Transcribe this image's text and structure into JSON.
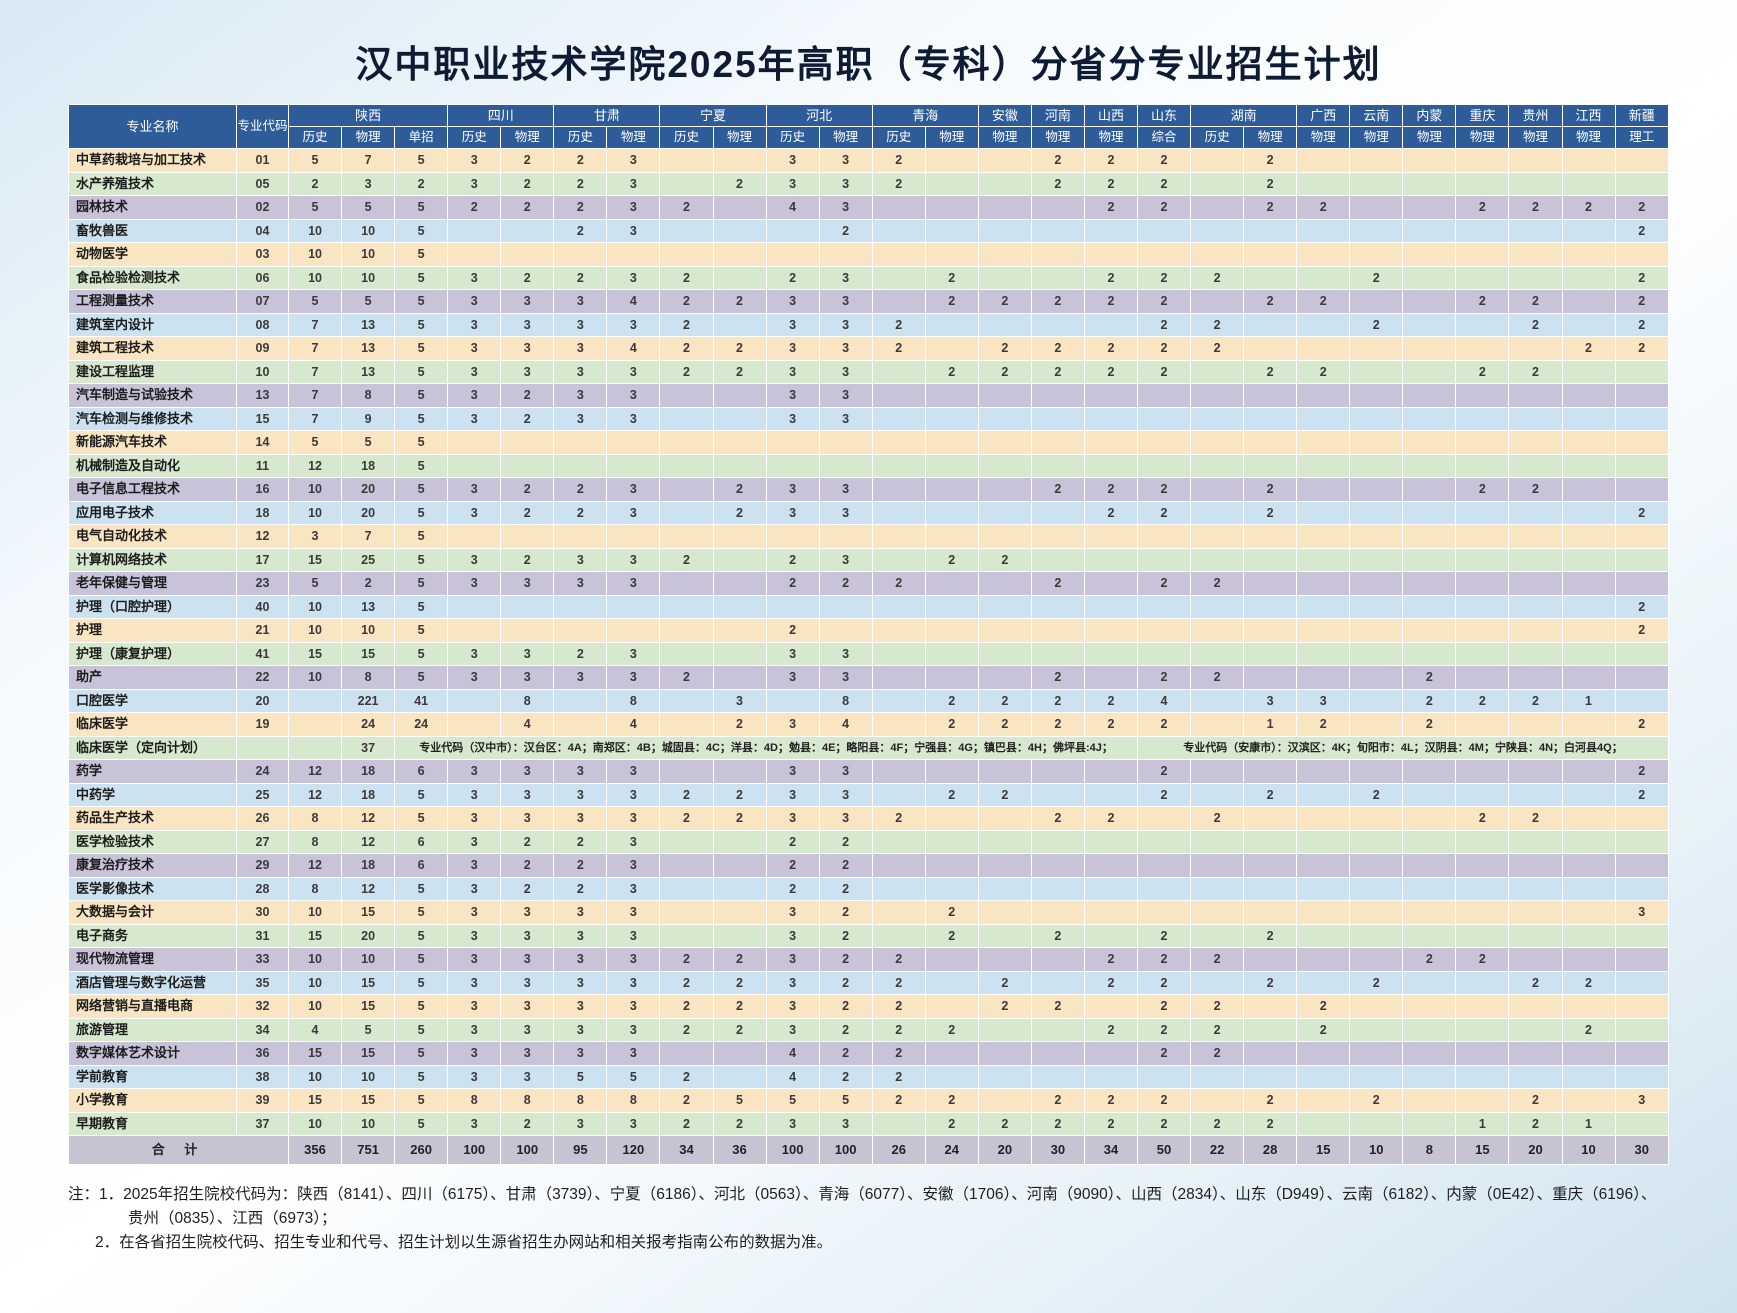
{
  "title": "汉中职业技术学院2025年高职（专科）分省分专业招生计划",
  "colors": {
    "header_bg": "#2e5c99",
    "row_cycle": [
      "#fae5c3",
      "#d6e8cd",
      "#c9c3d9",
      "#cde2f0"
    ],
    "total_bg": "#c6c3d3",
    "grid": "#ffffff",
    "title": "#0d1b33"
  },
  "table": {
    "header": {
      "name_label": "专业名称",
      "code_label": "专业代码",
      "groups": [
        {
          "name": "陕西",
          "subjects": [
            "历史",
            "物理",
            "单招"
          ]
        },
        {
          "name": "四川",
          "subjects": [
            "历史",
            "物理"
          ]
        },
        {
          "name": "甘肃",
          "subjects": [
            "历史",
            "物理"
          ]
        },
        {
          "name": "宁夏",
          "subjects": [
            "历史",
            "物理"
          ]
        },
        {
          "name": "河北",
          "subjects": [
            "历史",
            "物理"
          ]
        },
        {
          "name": "青海",
          "subjects": [
            "历史",
            "物理"
          ]
        },
        {
          "name": "安徽",
          "subjects": [
            "物理"
          ]
        },
        {
          "name": "河南",
          "subjects": [
            "物理"
          ]
        },
        {
          "name": "山西",
          "subjects": [
            "物理"
          ]
        },
        {
          "name": "山东",
          "subjects": [
            "综合"
          ]
        },
        {
          "name": "湖南",
          "subjects": [
            "历史",
            "物理"
          ]
        },
        {
          "name": "广西",
          "subjects": [
            "物理"
          ]
        },
        {
          "name": "云南",
          "subjects": [
            "物理"
          ]
        },
        {
          "name": "内蒙",
          "subjects": [
            "物理"
          ]
        },
        {
          "name": "重庆",
          "subjects": [
            "物理"
          ]
        },
        {
          "name": "贵州",
          "subjects": [
            "物理"
          ]
        },
        {
          "name": "江西",
          "subjects": [
            "物理"
          ]
        },
        {
          "name": "新疆",
          "subjects": [
            "理工"
          ]
        }
      ]
    },
    "rows": [
      {
        "name": "中草药栽培与加工技术",
        "code": "01",
        "values": [
          5,
          7,
          5,
          3,
          2,
          2,
          3,
          "",
          "",
          3,
          3,
          2,
          "",
          "",
          2,
          2,
          2,
          "",
          2
        ]
      },
      {
        "name": "水产养殖技术",
        "code": "05",
        "values": [
          2,
          3,
          2,
          3,
          2,
          2,
          3,
          "",
          2,
          3,
          3,
          2,
          "",
          "",
          2,
          2,
          2,
          "",
          2
        ]
      },
      {
        "name": "园林技术",
        "code": "02",
        "values": [
          5,
          5,
          5,
          2,
          2,
          2,
          3,
          2,
          "",
          4,
          3,
          "",
          "",
          "",
          "",
          2,
          2,
          "",
          2,
          2,
          "",
          "",
          2,
          2,
          2,
          2
        ]
      },
      {
        "name": "畜牧兽医",
        "code": "04",
        "values": [
          10,
          10,
          5,
          "",
          "",
          2,
          3,
          "",
          "",
          "",
          2,
          "",
          "",
          "",
          "",
          "",
          "",
          "",
          "",
          "",
          "",
          "",
          "",
          "",
          "",
          2
        ]
      },
      {
        "name": "动物医学",
        "code": "03",
        "values": [
          10,
          10,
          5
        ]
      },
      {
        "name": "食品检验检测技术",
        "code": "06",
        "values": [
          10,
          10,
          5,
          3,
          2,
          2,
          3,
          2,
          "",
          2,
          3,
          "",
          2,
          "",
          "",
          2,
          2,
          2,
          "",
          "",
          2,
          "",
          "",
          "",
          "",
          2
        ]
      },
      {
        "name": "工程测量技术",
        "code": "07",
        "values": [
          5,
          5,
          5,
          3,
          3,
          3,
          4,
          2,
          2,
          3,
          3,
          "",
          2,
          2,
          2,
          2,
          2,
          "",
          2,
          2,
          "",
          "",
          2,
          2,
          "",
          2
        ]
      },
      {
        "name": "建筑室内设计",
        "code": "08",
        "values": [
          7,
          13,
          5,
          3,
          3,
          3,
          3,
          2,
          "",
          3,
          3,
          2,
          "",
          "",
          "",
          "",
          2,
          2,
          "",
          "",
          2,
          "",
          "",
          2,
          "",
          2
        ]
      },
      {
        "name": "建筑工程技术",
        "code": "09",
        "values": [
          7,
          13,
          5,
          3,
          3,
          3,
          4,
          2,
          2,
          3,
          3,
          2,
          "",
          2,
          2,
          2,
          2,
          2,
          "",
          "",
          "",
          "",
          "",
          "",
          2,
          2
        ]
      },
      {
        "name": "建设工程监理",
        "code": "10",
        "values": [
          7,
          13,
          5,
          3,
          3,
          3,
          3,
          2,
          2,
          3,
          3,
          "",
          2,
          2,
          2,
          2,
          2,
          "",
          2,
          2,
          "",
          "",
          2,
          2
        ]
      },
      {
        "name": "汽车制造与试验技术",
        "code": "13",
        "values": [
          7,
          8,
          5,
          3,
          2,
          3,
          3,
          "",
          "",
          3,
          3
        ]
      },
      {
        "name": "汽车检测与维修技术",
        "code": "15",
        "values": [
          7,
          9,
          5,
          3,
          2,
          3,
          3,
          "",
          "",
          3,
          3
        ]
      },
      {
        "name": "新能源汽车技术",
        "code": "14",
        "values": [
          5,
          5,
          5
        ]
      },
      {
        "name": "机械制造及自动化",
        "code": "11",
        "values": [
          12,
          18,
          5
        ]
      },
      {
        "name": "电子信息工程技术",
        "code": "16",
        "values": [
          10,
          20,
          5,
          3,
          2,
          2,
          3,
          "",
          2,
          3,
          3,
          "",
          "",
          "",
          2,
          2,
          2,
          "",
          2,
          "",
          "",
          "",
          2,
          2
        ]
      },
      {
        "name": "应用电子技术",
        "code": "18",
        "values": [
          10,
          20,
          5,
          3,
          2,
          2,
          3,
          "",
          2,
          3,
          3,
          "",
          "",
          "",
          "",
          2,
          2,
          "",
          2,
          "",
          "",
          "",
          "",
          "",
          "",
          2
        ]
      },
      {
        "name": "电气自动化技术",
        "code": "12",
        "values": [
          3,
          7,
          5
        ]
      },
      {
        "name": "计算机网络技术",
        "code": "17",
        "values": [
          15,
          25,
          5,
          3,
          2,
          3,
          3,
          2,
          "",
          2,
          3,
          "",
          2,
          2
        ]
      },
      {
        "name": "老年保健与管理",
        "code": "23",
        "values": [
          5,
          2,
          5,
          3,
          3,
          3,
          3,
          "",
          "",
          2,
          2,
          2,
          "",
          "",
          2,
          "",
          2,
          2
        ]
      },
      {
        "name": "护理（口腔护理）",
        "code": "40",
        "values": [
          10,
          13,
          5,
          "",
          "",
          "",
          "",
          "",
          "",
          "",
          "",
          "",
          "",
          "",
          "",
          "",
          "",
          "",
          "",
          "",
          "",
          "",
          "",
          "",
          "",
          2
        ]
      },
      {
        "name": "护理",
        "code": "21",
        "values": [
          10,
          10,
          5,
          "",
          "",
          "",
          "",
          "",
          "",
          2,
          "",
          "",
          "",
          "",
          "",
          "",
          "",
          "",
          "",
          "",
          "",
          "",
          "",
          "",
          "",
          2
        ]
      },
      {
        "name": "护理（康复护理）",
        "code": "41",
        "values": [
          15,
          15,
          5,
          3,
          3,
          2,
          3,
          "",
          "",
          3,
          3
        ]
      },
      {
        "name": "助产",
        "code": "22",
        "values": [
          10,
          8,
          5,
          3,
          3,
          3,
          3,
          2,
          "",
          3,
          3,
          "",
          "",
          "",
          2,
          "",
          2,
          2,
          "",
          "",
          "",
          2
        ]
      },
      {
        "name": "口腔医学",
        "code": "20",
        "values": [
          "",
          221,
          41,
          "",
          8,
          "",
          8,
          "",
          3,
          "",
          8,
          "",
          2,
          2,
          2,
          2,
          4,
          "",
          3,
          3,
          "",
          2,
          2,
          2,
          1
        ]
      },
      {
        "name": "临床医学",
        "code": "19",
        "values": [
          "",
          24,
          24,
          "",
          4,
          "",
          4,
          "",
          2,
          3,
          4,
          "",
          2,
          2,
          2,
          2,
          2,
          "",
          1,
          2,
          "",
          2,
          "",
          "",
          "",
          2
        ]
      },
      {
        "name": "临床医学（定向计划）",
        "code": "",
        "values": [
          "",
          37
        ],
        "merged_left": "专业代码（汉中市）：汉台区：4A；南郑区：4B；城固县：4C；洋县：4D；勉县：4E；略阳县：4F；宁强县：4G；镇巴县：4H；佛坪县:4J；",
        "merged_right": "专业代码（安康市）：汉滨区：4K；旬阳市：4L；汉阴县：4M；宁陕县：4N；白河县4Q；"
      },
      {
        "name": "药学",
        "code": "24",
        "values": [
          12,
          18,
          6,
          3,
          3,
          3,
          3,
          "",
          "",
          3,
          3,
          "",
          "",
          "",
          "",
          "",
          2,
          "",
          "",
          "",
          "",
          "",
          "",
          "",
          "",
          2
        ]
      },
      {
        "name": "中药学",
        "code": "25",
        "values": [
          12,
          18,
          5,
          3,
          3,
          3,
          3,
          2,
          2,
          3,
          3,
          "",
          2,
          2,
          "",
          "",
          2,
          "",
          2,
          "",
          2,
          "",
          "",
          "",
          "",
          2
        ]
      },
      {
        "name": "药品生产技术",
        "code": "26",
        "values": [
          8,
          12,
          5,
          3,
          3,
          3,
          3,
          2,
          2,
          3,
          3,
          2,
          "",
          "",
          2,
          2,
          "",
          2,
          "",
          "",
          "",
          "",
          2,
          2
        ]
      },
      {
        "name": "医学检验技术",
        "code": "27",
        "values": [
          8,
          12,
          6,
          3,
          2,
          2,
          3,
          "",
          "",
          2,
          2
        ]
      },
      {
        "name": "康复治疗技术",
        "code": "29",
        "values": [
          12,
          18,
          6,
          3,
          2,
          2,
          3,
          "",
          "",
          2,
          2
        ]
      },
      {
        "name": "医学影像技术",
        "code": "28",
        "values": [
          8,
          12,
          5,
          3,
          2,
          2,
          3,
          "",
          "",
          2,
          2
        ]
      },
      {
        "name": "大数据与会计",
        "code": "30",
        "values": [
          10,
          15,
          5,
          3,
          3,
          3,
          3,
          "",
          "",
          3,
          2,
          "",
          2,
          "",
          "",
          "",
          "",
          "",
          "",
          "",
          "",
          "",
          "",
          "",
          "",
          3
        ]
      },
      {
        "name": "电子商务",
        "code": "31",
        "values": [
          15,
          20,
          5,
          3,
          3,
          3,
          3,
          "",
          "",
          3,
          2,
          "",
          2,
          "",
          2,
          "",
          2,
          "",
          2
        ]
      },
      {
        "name": "现代物流管理",
        "code": "33",
        "values": [
          10,
          10,
          5,
          3,
          3,
          3,
          3,
          2,
          2,
          3,
          2,
          2,
          "",
          "",
          "",
          2,
          2,
          2,
          "",
          "",
          "",
          2,
          2
        ]
      },
      {
        "name": "酒店管理与数字化运营",
        "code": "35",
        "values": [
          10,
          15,
          5,
          3,
          3,
          3,
          3,
          2,
          2,
          3,
          2,
          2,
          "",
          2,
          "",
          2,
          2,
          "",
          2,
          "",
          2,
          "",
          "",
          2,
          2
        ]
      },
      {
        "name": "网络营销与直播电商",
        "code": "32",
        "values": [
          10,
          15,
          5,
          3,
          3,
          3,
          3,
          2,
          2,
          3,
          2,
          2,
          "",
          2,
          2,
          "",
          2,
          2,
          "",
          2
        ]
      },
      {
        "name": "旅游管理",
        "code": "34",
        "values": [
          4,
          5,
          5,
          3,
          3,
          3,
          3,
          2,
          2,
          3,
          2,
          2,
          2,
          "",
          "",
          2,
          2,
          2,
          "",
          2,
          "",
          "",
          "",
          "",
          2
        ]
      },
      {
        "name": "数字媒体艺术设计",
        "code": "36",
        "values": [
          15,
          15,
          5,
          3,
          3,
          3,
          3,
          "",
          "",
          4,
          2,
          2,
          "",
          "",
          "",
          "",
          2,
          2
        ]
      },
      {
        "name": "学前教育",
        "code": "38",
        "values": [
          10,
          10,
          5,
          3,
          3,
          5,
          5,
          2,
          "",
          4,
          2,
          2
        ]
      },
      {
        "name": "小学教育",
        "code": "39",
        "values": [
          15,
          15,
          5,
          8,
          8,
          8,
          8,
          2,
          5,
          5,
          5,
          2,
          2,
          "",
          2,
          2,
          2,
          "",
          2,
          "",
          2,
          "",
          "",
          2,
          "",
          3
        ]
      },
      {
        "name": "早期教育",
        "code": "37",
        "values": [
          10,
          10,
          5,
          3,
          2,
          3,
          3,
          2,
          2,
          3,
          3,
          "",
          2,
          2,
          2,
          2,
          2,
          2,
          2,
          "",
          "",
          "",
          1,
          2,
          1
        ]
      }
    ],
    "total": {
      "label": "合 计",
      "values": [
        356,
        751,
        260,
        100,
        100,
        95,
        120,
        34,
        36,
        100,
        100,
        26,
        24,
        20,
        30,
        34,
        50,
        22,
        28,
        15,
        10,
        8,
        15,
        20,
        10,
        30
      ]
    }
  },
  "notes": {
    "lines": [
      "注：1．2025年招生院校代码为：陕西（8141）、四川（6175）、甘肃（3739）、宁夏（6186）、河北（0563）、青海（6077）、安徽（1706）、河南（9090）、山西（2834）、山东（D949）、云南（6182）、内蒙（0E42）、重庆（6196）、",
      "贵州（0835）、江西（6973）；",
      "2．在各省招生院校代码、招生专业和代号、招生计划以生源省招生办网站和相关报考指南公布的数据为准。"
    ]
  }
}
